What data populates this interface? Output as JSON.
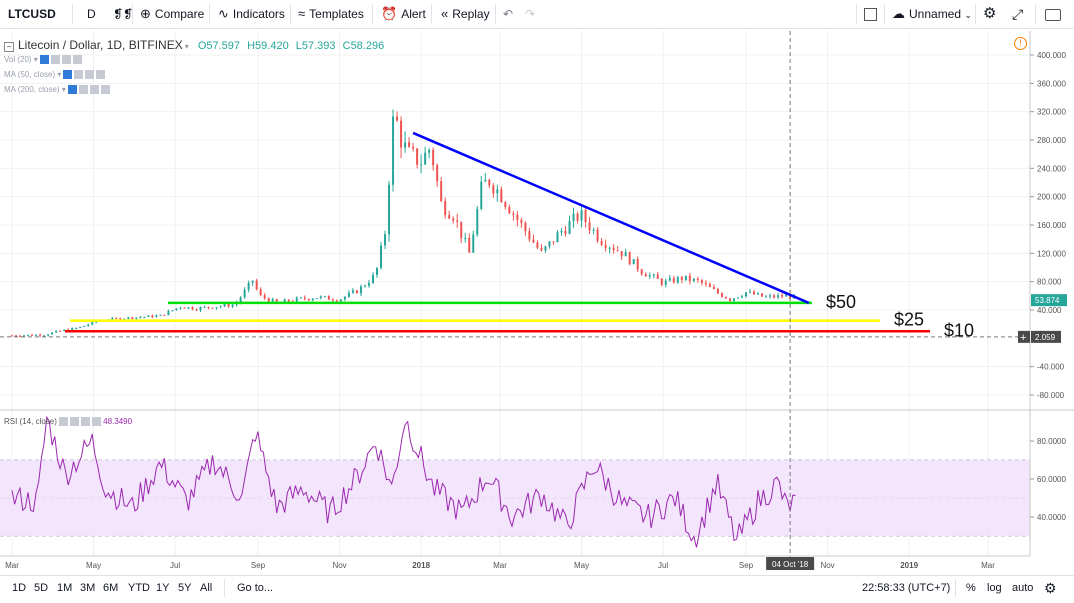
{
  "toolbar": {
    "symbol": "LTCUSD",
    "interval": "D",
    "compare": "Compare",
    "indicators": "Indicators",
    "templates": "Templates",
    "alert": "Alert",
    "replay": "Replay",
    "layout_name": "Unnamed"
  },
  "legend": {
    "title": "Litecoin / Dollar, 1D, BITFINEX",
    "open_label": "O",
    "open": "57.597",
    "high_label": "H",
    "high": "59.420",
    "low_label": "L",
    "low": "57.393",
    "close_label": "C",
    "close": "58.296",
    "up_color": "#26a69a",
    "indicators": [
      "Vol (20)",
      "MA (50, close)",
      "MA (200, close)"
    ]
  },
  "rsi": {
    "label": "RSI (14, close)",
    "value": "48.3490",
    "color": "#9c27b0"
  },
  "chart_data": [
    {
      "type": "candlestick",
      "title": "Litecoin / Dollar, 1D, BITFINEX",
      "x_ticks": [
        "Mar",
        "May",
        "Jul",
        "Sep",
        "Nov",
        "2018",
        "Mar",
        "May",
        "Jul",
        "Sep",
        "Nov",
        "2019",
        "Mar"
      ],
      "y_ticks": [
        400,
        360,
        320,
        280,
        240,
        200,
        160,
        120,
        80,
        40,
        -40,
        -80
      ],
      "y_tick_labels": [
        "400.000",
        "360.000",
        "320.000",
        "280.000",
        "240.000",
        "200.000",
        "160.000",
        "120.000",
        "80.000",
        "40.000",
        "-40.000",
        "-80.000"
      ],
      "ylim": [
        -100,
        420
      ],
      "last_price_label": "53.874",
      "crosshair_price_label": "2.059",
      "crosshair_date_label": "04 Oct '18",
      "series": [
        {
          "name": "LTCUSD",
          "x": [
            "2017-03-01",
            "2017-03-25",
            "2017-04-05",
            "2017-04-20",
            "2017-05-05",
            "2017-05-20",
            "2017-06-05",
            "2017-06-20",
            "2017-07-05",
            "2017-07-16",
            "2017-08-01",
            "2017-08-15",
            "2017-08-28",
            "2017-09-02",
            "2017-09-15",
            "2017-10-01",
            "2017-10-15",
            "2017-11-01",
            "2017-11-15",
            "2017-11-28",
            "2017-12-05",
            "2017-12-12",
            "2017-12-15",
            "2017-12-22",
            "2018-01-01",
            "2018-01-08",
            "2018-01-16",
            "2018-01-25",
            "2018-02-06",
            "2018-02-15",
            "2018-02-20",
            "2018-03-01",
            "2018-03-15",
            "2018-04-01",
            "2018-04-15",
            "2018-04-30",
            "2018-05-15",
            "2018-06-01",
            "2018-06-15",
            "2018-07-01",
            "2018-07-15",
            "2018-07-28",
            "2018-08-10",
            "2018-08-20",
            "2018-09-01",
            "2018-09-15",
            "2018-10-01",
            "2018-10-08"
          ],
          "y": [
            4,
            5,
            10,
            15,
            25,
            28,
            30,
            32,
            45,
            42,
            45,
            48,
            82,
            60,
            50,
            55,
            58,
            55,
            68,
            90,
            150,
            330,
            290,
            260,
            250,
            270,
            190,
            175,
            120,
            210,
            225,
            205,
            165,
            120,
            150,
            175,
            140,
            120,
            95,
            78,
            85,
            80,
            65,
            55,
            65,
            58,
            60,
            58
          ]
        }
      ],
      "annotations": [
        {
          "label": "$50",
          "price": 50,
          "color": "#00e000"
        },
        {
          "label": "$25",
          "price": 25,
          "color": "#ffff00"
        },
        {
          "label": "$10",
          "price": 10,
          "color": "#ff0000"
        }
      ],
      "trendline": {
        "color": "#0000ff",
        "from": {
          "x": "2017-12-26",
          "y": 290
        },
        "to": {
          "x": "2018-10-18",
          "y": 50
        }
      }
    },
    {
      "type": "line",
      "title": "RSI (14, close)",
      "y_ticks": [
        80,
        60,
        40
      ],
      "y_tick_labels": [
        "80.0000",
        "60.0000",
        "40.0000"
      ],
      "band": [
        30,
        70
      ],
      "ylim": [
        20,
        100
      ],
      "series": [
        {
          "name": "RSI",
          "x": [
            "2017-03-01",
            "2017-03-20",
            "2017-03-27",
            "2017-04-10",
            "2017-04-30",
            "2017-05-10",
            "2017-05-30",
            "2017-06-20",
            "2017-07-10",
            "2017-07-30",
            "2017-08-20",
            "2017-08-30",
            "2017-09-15",
            "2017-10-05",
            "2017-10-25",
            "2017-11-15",
            "2017-11-28",
            "2017-12-10",
            "2017-12-20",
            "2018-01-10",
            "2018-02-01",
            "2018-02-20",
            "2018-03-10",
            "2018-04-01",
            "2018-04-20",
            "2018-05-10",
            "2018-06-01",
            "2018-06-20",
            "2018-07-10",
            "2018-07-25",
            "2018-08-10",
            "2018-08-25",
            "2018-09-10",
            "2018-09-25",
            "2018-10-01",
            "2018-10-08"
          ],
          "y": [
            50,
            48,
            92,
            62,
            80,
            55,
            45,
            68,
            48,
            70,
            50,
            85,
            45,
            55,
            42,
            62,
            80,
            55,
            92,
            55,
            42,
            62,
            40,
            52,
            35,
            68,
            46,
            40,
            50,
            28,
            58,
            27,
            48,
            58,
            45,
            48
          ]
        }
      ]
    }
  ],
  "bottom": {
    "ranges": [
      "1D",
      "5D",
      "1M",
      "3M",
      "6M",
      "YTD",
      "1Y",
      "5Y",
      "All"
    ],
    "goto": "Go to...",
    "time": "22:58:33 (UTC+7)",
    "percent": "%",
    "log": "log",
    "auto": "auto"
  }
}
